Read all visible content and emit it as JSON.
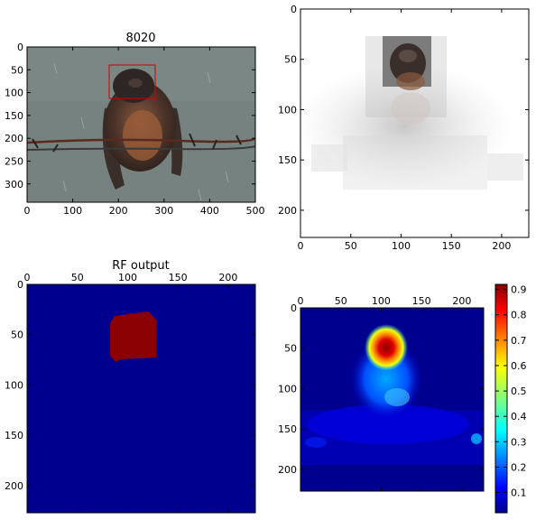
{
  "figure": {
    "panels": [
      {
        "id": "photo",
        "title": "8020",
        "xticks": [
          "0",
          "100",
          "200",
          "300",
          "400",
          "500"
        ],
        "yticks": [
          "0",
          "50",
          "100",
          "150",
          "200",
          "250",
          "300"
        ]
      },
      {
        "id": "saliency",
        "title": "",
        "xticks": [
          "0",
          "50",
          "100",
          "150",
          "200"
        ],
        "yticks": [
          "0",
          "50",
          "100",
          "150",
          "200"
        ]
      },
      {
        "id": "rf",
        "title": "RF output",
        "xticks": [
          "0",
          "50",
          "100",
          "150",
          "200"
        ],
        "yticks": [
          "0",
          "50",
          "100",
          "150",
          "200"
        ]
      },
      {
        "id": "heat",
        "title": "",
        "xticks": [
          "0",
          "50",
          "100",
          "150",
          "200"
        ],
        "yticks": [
          "0",
          "50",
          "100",
          "150",
          "200"
        ]
      }
    ],
    "colorbar": {
      "ticks": [
        "0.1",
        "0.2",
        "0.3",
        "0.4",
        "0.5",
        "0.6",
        "0.7",
        "0.8",
        "0.9"
      ]
    }
  },
  "chart_data": [
    {
      "type": "heatmap",
      "title": "8020",
      "content": "photograph of a bird perched on barbed wire with a red bounding box around its head",
      "xlim": [
        0,
        500
      ],
      "ylim": [
        340,
        0
      ],
      "bounding_box_data": {
        "x0": 182,
        "y0": 40,
        "x1": 285,
        "y1": 113
      },
      "colors": {
        "box": "#cc0000",
        "sky": "#7a8784"
      }
    },
    {
      "type": "heatmap",
      "title": "",
      "content": "grayscale saliency-masked image of the bird",
      "xlim": [
        0,
        227
      ],
      "ylim": [
        227,
        0
      ]
    },
    {
      "type": "heatmap",
      "title": "RF output",
      "xlim": [
        0,
        227
      ],
      "ylim": [
        227,
        0
      ],
      "region_data": {
        "x0": 82,
        "y0": 27,
        "x1": 130,
        "y1": 75,
        "value": "high"
      },
      "colors": {
        "background": "#00008f",
        "region": "#8b0000"
      }
    },
    {
      "type": "heatmap",
      "title": "",
      "xlim": [
        0,
        227
      ],
      "ylim": [
        227,
        0
      ],
      "colorbar": {
        "min": 0.02,
        "max": 0.92,
        "colormap": "jet"
      },
      "peak_data": {
        "x": 108,
        "y": 36,
        "value": 0.9
      }
    }
  ]
}
